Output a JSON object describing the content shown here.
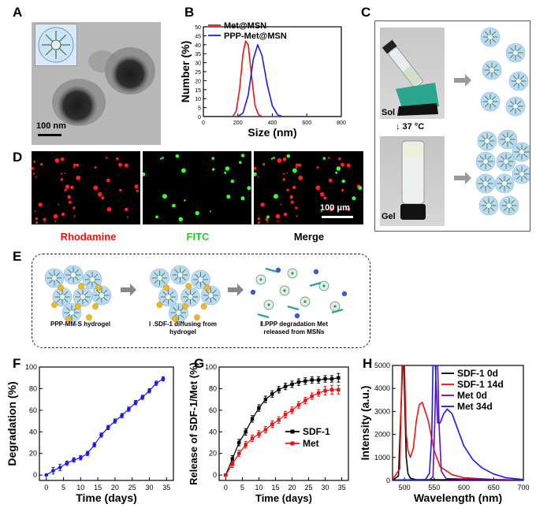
{
  "panels": {
    "A": {
      "label": "A",
      "scale_bar": "100 nm"
    },
    "B": {
      "label": "B"
    },
    "C": {
      "label": "C",
      "sol": "Sol",
      "gel": "Gel",
      "temp": "↓ 37 °C"
    },
    "D": {
      "label": "D",
      "scale_bar": "100 μm",
      "channels": [
        "Rhodamine",
        "FITC",
        "Merge"
      ]
    },
    "E": {
      "label": "E",
      "captions": [
        "PPP-MM-S hydrogel",
        "Ⅰ .SDF-1 diffusing from hydrogel",
        "Ⅱ.PPP degradation Met released from MSNs"
      ]
    },
    "F": {
      "label": "F"
    },
    "G": {
      "label": "G"
    },
    "H": {
      "label": "H"
    }
  },
  "colors": {
    "red": "#ee1111",
    "blue": "#1a1aee",
    "black": "#000000",
    "purple": "#6a0dad",
    "green": "#22cc22"
  },
  "chart_data": [
    {
      "id": "B",
      "type": "line",
      "title": "",
      "xlabel": "Size (nm)",
      "ylabel": "Number (%)",
      "xlim": [
        0,
        800
      ],
      "ylim": [
        0,
        50
      ],
      "xticks": [
        0,
        200,
        400,
        600,
        800
      ],
      "yticks": [
        0,
        5,
        10,
        15,
        20,
        25,
        30,
        35,
        40,
        45,
        50
      ],
      "legend": "top-left",
      "series": [
        {
          "name": "Met@MSN",
          "color": "#ee1111",
          "x": [
            0,
            170,
            190,
            210,
            230,
            245,
            260,
            280,
            300,
            320,
            340,
            400,
            800
          ],
          "values": [
            0,
            0,
            3,
            15,
            35,
            42,
            40,
            22,
            6,
            1,
            0,
            0,
            0
          ]
        },
        {
          "name": "PPP-Met@MSN",
          "color": "#1a1aee",
          "x": [
            0,
            200,
            230,
            260,
            290,
            315,
            340,
            370,
            400,
            430,
            460,
            800
          ],
          "values": [
            0,
            0,
            2,
            12,
            32,
            40,
            34,
            18,
            6,
            1,
            0,
            0
          ]
        }
      ]
    },
    {
      "id": "F",
      "type": "line",
      "title": "",
      "xlabel": "Time (days)",
      "ylabel": "Degradation (%)",
      "xlim": [
        -2,
        37
      ],
      "ylim": [
        -5,
        100
      ],
      "xticks": [
        0,
        5,
        10,
        15,
        20,
        25,
        30,
        35
      ],
      "yticks": [
        0,
        20,
        40,
        60,
        80,
        100
      ],
      "series": [
        {
          "name": "Degradation",
          "color": "#1a1aee",
          "x": [
            0,
            2,
            4,
            6,
            8,
            10,
            12,
            14,
            16,
            18,
            20,
            22,
            24,
            26,
            28,
            30,
            32,
            34
          ],
          "values": [
            0,
            4,
            7,
            11,
            14,
            16,
            20,
            28,
            37,
            44,
            50,
            55,
            61,
            67,
            72,
            78,
            85,
            89
          ],
          "err": [
            0,
            3,
            3,
            2,
            2,
            2,
            2,
            2,
            2,
            2,
            2,
            2,
            2,
            2,
            2,
            2,
            2,
            2
          ]
        }
      ]
    },
    {
      "id": "G",
      "type": "line",
      "title": "",
      "xlabel": "Time (days)",
      "ylabel": "Release of SDF-1/Met (%)",
      "xlim": [
        -2,
        37
      ],
      "ylim": [
        -5,
        100
      ],
      "xticks": [
        0,
        5,
        10,
        15,
        20,
        25,
        30,
        35
      ],
      "yticks": [
        0,
        20,
        40,
        60,
        80,
        100
      ],
      "legend": "right-middle",
      "series": [
        {
          "name": "SDF-1",
          "color": "#000000",
          "x": [
            0,
            2,
            4,
            6,
            8,
            10,
            12,
            14,
            16,
            18,
            20,
            22,
            24,
            26,
            28,
            30,
            32,
            34
          ],
          "values": [
            0,
            15,
            30,
            40,
            52,
            62,
            70,
            75,
            79,
            82,
            84,
            86,
            87,
            88,
            88,
            89,
            89,
            90
          ],
          "err": [
            0,
            3,
            3,
            3,
            3,
            3,
            3,
            3,
            3,
            3,
            3,
            3,
            3,
            3,
            3,
            3,
            3,
            4
          ]
        },
        {
          "name": "Met",
          "color": "#ee1111",
          "x": [
            0,
            2,
            4,
            6,
            8,
            10,
            12,
            14,
            16,
            18,
            20,
            22,
            24,
            26,
            28,
            30,
            32,
            34
          ],
          "values": [
            0,
            10,
            20,
            28,
            34,
            38,
            42,
            47,
            51,
            56,
            60,
            65,
            69,
            73,
            76,
            78,
            79,
            79
          ],
          "err": [
            0,
            3,
            3,
            3,
            3,
            3,
            3,
            3,
            3,
            3,
            3,
            3,
            3,
            3,
            3,
            4,
            4,
            4
          ]
        }
      ]
    },
    {
      "id": "H",
      "type": "line",
      "title": "",
      "xlabel": "Wavelength (nm)",
      "ylabel": "Intensity (a.u.)",
      "xlim": [
        480,
        700
      ],
      "ylim": [
        0,
        5000
      ],
      "xticks": [
        500,
        550,
        600,
        650,
        700
      ],
      "yticks": [
        0,
        1000,
        2000,
        3000,
        4000,
        5000
      ],
      "legend": "top-right",
      "series": [
        {
          "name": "SDF-1 0d",
          "color": "#000000",
          "x": [
            480,
            490,
            494,
            497,
            499,
            501,
            503,
            506,
            510,
            520,
            700
          ],
          "values": [
            0,
            200,
            3000,
            5000,
            5000,
            3000,
            1000,
            300,
            100,
            30,
            20
          ]
        },
        {
          "name": "SDF-1 14d",
          "color": "#ee1111",
          "x": [
            480,
            492,
            496,
            500,
            503,
            506,
            510,
            515,
            520,
            525,
            530,
            540,
            550,
            560,
            580,
            600,
            650,
            700
          ],
          "values": [
            50,
            500,
            5000,
            5000,
            2000,
            1300,
            1000,
            1400,
            2600,
            3300,
            3400,
            2600,
            1300,
            600,
            250,
            120,
            40,
            20
          ]
        },
        {
          "name": "Met 0d",
          "color": "#6a0dad",
          "x": [
            480,
            540,
            548,
            551,
            553,
            556,
            558,
            562,
            570,
            700
          ],
          "values": [
            0,
            0,
            150,
            2500,
            5000,
            5000,
            2500,
            400,
            80,
            10
          ]
        },
        {
          "name": "Met 34d",
          "color": "#1a1aee",
          "x": [
            480,
            535,
            542,
            546,
            548,
            552,
            556,
            560,
            566,
            572,
            580,
            590,
            600,
            615,
            630,
            650,
            670,
            700
          ],
          "values": [
            20,
            30,
            300,
            2000,
            5000,
            5000,
            2500,
            2500,
            2900,
            3100,
            2900,
            2200,
            1500,
            900,
            550,
            280,
            120,
            40
          ]
        }
      ]
    }
  ]
}
